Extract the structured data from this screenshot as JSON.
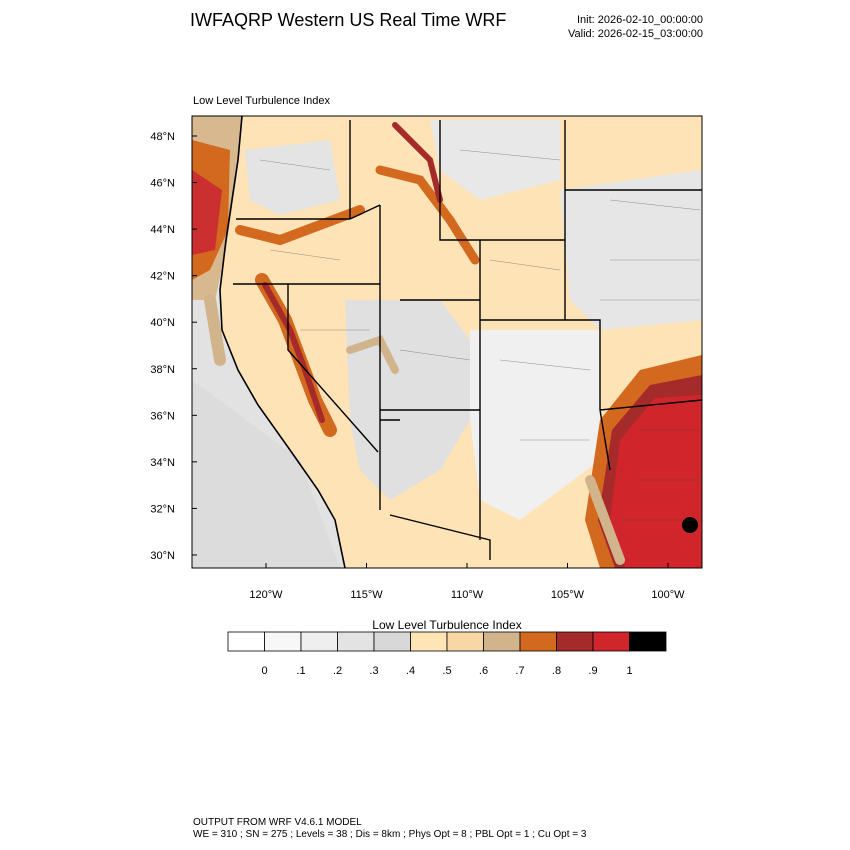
{
  "header": {
    "title": "IWFAQRP Western US Real Time WRF",
    "init": "Init: 2026-02-10_00:00:00",
    "valid": "Valid: 2026-02-15_03:00:00"
  },
  "map": {
    "title": "Low Level Turbulence Index",
    "lat_labels": [
      "48°N",
      "46°N",
      "44°N",
      "42°N",
      "40°N",
      "38°N",
      "36°N",
      "34°N",
      "32°N",
      "30°N"
    ],
    "lon_labels": [
      "120°W",
      "115°W",
      "110°W",
      "105°W",
      "100°W"
    ]
  },
  "colorbar": {
    "title": "Low Level Turbulence Index",
    "labels": [
      "0",
      ".1",
      ".2",
      ".3",
      ".4",
      ".5",
      ".6",
      ".7",
      ".8",
      ".9",
      "1"
    ],
    "colors": [
      "#ffffff",
      "#f7f7f7",
      "#efefef",
      "#e3e3e3",
      "#d8d8d8",
      "#ffe4b5",
      "#f7d7a6",
      "#d2b48c",
      "#d2691e",
      "#a52a2a",
      "#d0262b",
      "#000000"
    ]
  },
  "footer": {
    "line1": "OUTPUT FROM WRF V4.6.1 MODEL",
    "line2": "WE = 310 ; SN = 275 ; Levels = 38 ; Dis = 8km ; Phys Opt = 8 ; PBL Opt = 1 ; Cu Opt = 3"
  }
}
